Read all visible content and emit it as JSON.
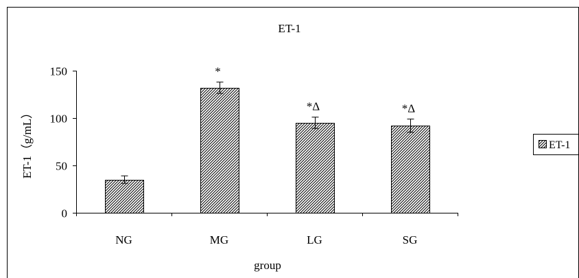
{
  "chart_data": {
    "type": "bar",
    "title": "ET-1",
    "xlabel": "group",
    "ylabel": "ET-1（g/mL）",
    "categories": [
      "NG",
      "MG",
      "LG",
      "SG"
    ],
    "series": [
      {
        "name": "ET-1",
        "values": [
          35,
          132,
          95,
          92
        ],
        "errors": [
          4,
          6,
          6,
          7
        ],
        "annotations": [
          "",
          "*",
          "*Δ",
          "*Δ"
        ]
      }
    ],
    "ylim": [
      0,
      150
    ],
    "yticks": [
      "0",
      "50",
      "100",
      "150"
    ],
    "grid": false,
    "legend": "right",
    "pattern": "diagonal-hatch",
    "colors": {
      "bar_fill": "#ffffff",
      "hatch": "#000000",
      "frame": "#000000"
    }
  }
}
